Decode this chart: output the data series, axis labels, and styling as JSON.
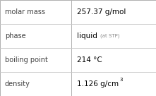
{
  "rows": [
    {
      "label": "molar mass",
      "value": "257.37 g/mol",
      "value_extra": null,
      "superscript": false,
      "small_note": false
    },
    {
      "label": "phase",
      "value": "liquid",
      "value_extra": "(at STP)",
      "superscript": false,
      "small_note": true
    },
    {
      "label": "boiling point",
      "value": "214 °C",
      "value_extra": null,
      "superscript": false,
      "small_note": false
    },
    {
      "label": "density",
      "value": "1.126 g/cm",
      "value_extra": "3",
      "superscript": true,
      "small_note": false
    }
  ],
  "bg_color": "#ffffff",
  "border_color": "#b0b0b0",
  "label_color": "#404040",
  "value_color": "#000000",
  "note_color": "#888888",
  "divider_color": "#c8c8c8",
  "col_split": 0.455,
  "label_fontsize": 7.0,
  "value_fontsize": 7.5,
  "note_fontsize": 5.0,
  "super_fontsize": 5.0
}
